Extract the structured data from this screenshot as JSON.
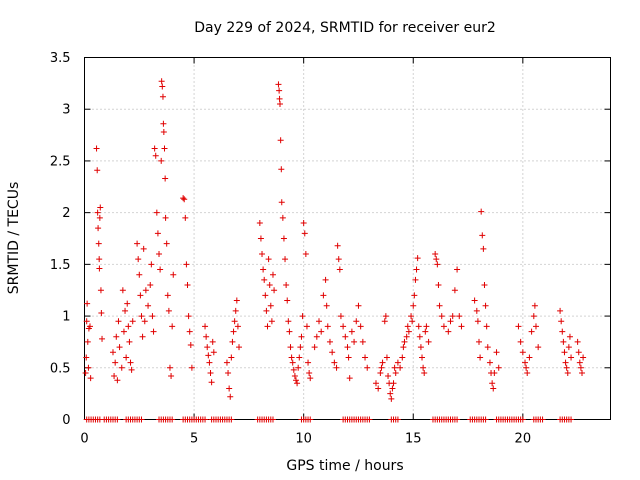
{
  "chart_data": {
    "type": "scatter",
    "title": "Day 229 of 2024, SRMTID for receiver eur2",
    "xlabel": "GPS time / hours",
    "ylabel": "SRMTID / TECUs",
    "xlim": [
      0,
      24
    ],
    "ylim": [
      0,
      3.5
    ],
    "x_ticks": [
      0,
      5,
      10,
      15,
      20
    ],
    "x_tick_labels": [
      "0",
      "5",
      "10",
      "15",
      "20"
    ],
    "y_ticks": [
      0,
      0.5,
      1,
      1.5,
      2,
      2.5,
      3,
      3.5
    ],
    "y_tick_labels": [
      "0",
      "0.5",
      "1",
      "1.5",
      "2",
      "2.5",
      "3",
      "3.5"
    ],
    "grid": true,
    "marker": "+",
    "marker_color": "#e00000",
    "series": [
      {
        "name": "SRMTID",
        "points": [
          [
            0.05,
            0.45
          ],
          [
            0.08,
            0.6
          ],
          [
            0.1,
            0.95
          ],
          [
            0.12,
            1.12
          ],
          [
            0.15,
            0.75
          ],
          [
            0.18,
            0.5
          ],
          [
            0.2,
            0.88
          ],
          [
            0.25,
            0.9
          ],
          [
            0.28,
            0.4
          ],
          [
            0.55,
            2.62
          ],
          [
            0.58,
            2.41
          ],
          [
            0.6,
            2.0
          ],
          [
            0.62,
            1.85
          ],
          [
            0.65,
            1.7
          ],
          [
            0.67,
            1.55
          ],
          [
            0.68,
            1.46
          ],
          [
            0.7,
            1.95
          ],
          [
            0.72,
            2.05
          ],
          [
            0.75,
            1.25
          ],
          [
            0.77,
            1.03
          ],
          [
            0.8,
            0.78
          ],
          [
            1.3,
            0.65
          ],
          [
            1.35,
            0.42
          ],
          [
            1.4,
            0.55
          ],
          [
            1.45,
            0.8
          ],
          [
            1.5,
            0.38
          ],
          [
            1.55,
            0.95
          ],
          [
            1.6,
            0.7
          ],
          [
            1.7,
            0.5
          ],
          [
            1.75,
            1.25
          ],
          [
            1.8,
            0.85
          ],
          [
            1.85,
            1.05
          ],
          [
            1.9,
            0.6
          ],
          [
            1.95,
            1.12
          ],
          [
            2.0,
            0.9
          ],
          [
            2.05,
            0.75
          ],
          [
            2.1,
            0.55
          ],
          [
            2.15,
            0.48
          ],
          [
            2.2,
            0.95
          ],
          [
            2.4,
            1.7
          ],
          [
            2.45,
            1.55
          ],
          [
            2.5,
            1.4
          ],
          [
            2.55,
            1.2
          ],
          [
            2.6,
            1.0
          ],
          [
            2.65,
            0.8
          ],
          [
            2.7,
            1.65
          ],
          [
            2.75,
            0.95
          ],
          [
            2.8,
            1.25
          ],
          [
            2.9,
            1.1
          ],
          [
            3.0,
            1.3
          ],
          [
            3.05,
            1.5
          ],
          [
            3.1,
            1.0
          ],
          [
            3.15,
            0.85
          ],
          [
            3.2,
            2.62
          ],
          [
            3.25,
            2.55
          ],
          [
            3.3,
            2.0
          ],
          [
            3.35,
            1.8
          ],
          [
            3.4,
            1.6
          ],
          [
            3.45,
            1.45
          ],
          [
            3.5,
            2.5
          ],
          [
            3.52,
            3.27
          ],
          [
            3.55,
            3.22
          ],
          [
            3.58,
            3.12
          ],
          [
            3.6,
            2.86
          ],
          [
            3.62,
            2.78
          ],
          [
            3.65,
            2.62
          ],
          [
            3.68,
            2.33
          ],
          [
            3.7,
            1.95
          ],
          [
            3.75,
            1.7
          ],
          [
            3.8,
            1.2
          ],
          [
            3.85,
            1.05
          ],
          [
            3.9,
            0.5
          ],
          [
            3.95,
            0.42
          ],
          [
            4.0,
            0.9
          ],
          [
            4.05,
            1.4
          ],
          [
            4.5,
            2.14
          ],
          [
            4.55,
            2.13
          ],
          [
            4.6,
            1.95
          ],
          [
            4.65,
            1.5
          ],
          [
            4.7,
            1.3
          ],
          [
            4.75,
            1.0
          ],
          [
            4.8,
            0.85
          ],
          [
            4.85,
            0.72
          ],
          [
            4.9,
            0.5
          ],
          [
            5.5,
            0.9
          ],
          [
            5.55,
            0.8
          ],
          [
            5.6,
            0.7
          ],
          [
            5.65,
            0.62
          ],
          [
            5.7,
            0.55
          ],
          [
            5.75,
            0.45
          ],
          [
            5.8,
            0.36
          ],
          [
            5.85,
            0.75
          ],
          [
            5.9,
            0.65
          ],
          [
            6.5,
            0.55
          ],
          [
            6.55,
            0.45
          ],
          [
            6.6,
            0.3
          ],
          [
            6.65,
            0.22
          ],
          [
            6.7,
            0.6
          ],
          [
            6.75,
            0.75
          ],
          [
            6.8,
            0.85
          ],
          [
            6.85,
            0.95
          ],
          [
            6.9,
            1.05
          ],
          [
            6.95,
            1.15
          ],
          [
            7.0,
            0.9
          ],
          [
            7.05,
            0.7
          ],
          [
            8.0,
            1.9
          ],
          [
            8.05,
            1.75
          ],
          [
            8.1,
            1.6
          ],
          [
            8.15,
            1.45
          ],
          [
            8.2,
            1.35
          ],
          [
            8.25,
            1.2
          ],
          [
            8.3,
            1.05
          ],
          [
            8.35,
            0.9
          ],
          [
            8.4,
            1.55
          ],
          [
            8.45,
            1.3
          ],
          [
            8.5,
            1.1
          ],
          [
            8.55,
            0.95
          ],
          [
            8.6,
            1.4
          ],
          [
            8.65,
            1.25
          ],
          [
            8.85,
            3.24
          ],
          [
            8.88,
            3.18
          ],
          [
            8.9,
            3.1
          ],
          [
            8.92,
            3.05
          ],
          [
            8.95,
            2.7
          ],
          [
            8.98,
            2.42
          ],
          [
            9.0,
            2.1
          ],
          [
            9.05,
            1.95
          ],
          [
            9.1,
            1.75
          ],
          [
            9.15,
            1.55
          ],
          [
            9.2,
            1.3
          ],
          [
            9.25,
            1.15
          ],
          [
            9.3,
            0.95
          ],
          [
            9.35,
            0.85
          ],
          [
            9.4,
            0.7
          ],
          [
            9.45,
            0.6
          ],
          [
            9.5,
            0.55
          ],
          [
            9.55,
            0.48
          ],
          [
            9.6,
            0.42
          ],
          [
            9.65,
            0.38
          ],
          [
            9.7,
            0.35
          ],
          [
            9.75,
            0.5
          ],
          [
            9.8,
            0.6
          ],
          [
            9.85,
            0.7
          ],
          [
            9.9,
            0.8
          ],
          [
            9.95,
            1.0
          ],
          [
            10.0,
            1.9
          ],
          [
            10.05,
            1.8
          ],
          [
            10.1,
            1.6
          ],
          [
            10.15,
            0.9
          ],
          [
            10.2,
            0.55
          ],
          [
            10.25,
            0.45
          ],
          [
            10.3,
            0.4
          ],
          [
            10.5,
            0.7
          ],
          [
            10.6,
            0.8
          ],
          [
            10.7,
            0.95
          ],
          [
            10.8,
            0.85
          ],
          [
            10.9,
            1.2
          ],
          [
            11.0,
            1.35
          ],
          [
            11.05,
            1.1
          ],
          [
            11.1,
            0.9
          ],
          [
            11.2,
            0.75
          ],
          [
            11.3,
            0.65
          ],
          [
            11.4,
            0.55
          ],
          [
            11.5,
            0.5
          ],
          [
            11.55,
            1.68
          ],
          [
            11.6,
            1.55
          ],
          [
            11.65,
            1.45
          ],
          [
            11.7,
            1.0
          ],
          [
            11.8,
            0.9
          ],
          [
            11.9,
            0.8
          ],
          [
            12.0,
            0.7
          ],
          [
            12.05,
            0.6
          ],
          [
            12.1,
            0.4
          ],
          [
            12.2,
            0.85
          ],
          [
            12.3,
            0.75
          ],
          [
            12.4,
            0.95
          ],
          [
            12.5,
            1.1
          ],
          [
            12.6,
            0.9
          ],
          [
            12.7,
            0.75
          ],
          [
            12.8,
            0.6
          ],
          [
            12.9,
            0.5
          ],
          [
            13.3,
            0.35
          ],
          [
            13.4,
            0.3
          ],
          [
            13.5,
            0.45
          ],
          [
            13.55,
            0.5
          ],
          [
            13.6,
            0.55
          ],
          [
            13.7,
            0.95
          ],
          [
            13.75,
            1.0
          ],
          [
            13.8,
            0.6
          ],
          [
            13.85,
            0.42
          ],
          [
            13.9,
            0.35
          ],
          [
            13.95,
            0.25
          ],
          [
            14.0,
            0.2
          ],
          [
            14.05,
            0.3
          ],
          [
            14.1,
            0.35
          ],
          [
            14.15,
            0.5
          ],
          [
            14.2,
            0.45
          ],
          [
            14.3,
            0.55
          ],
          [
            14.4,
            0.5
          ],
          [
            14.5,
            0.6
          ],
          [
            14.55,
            0.7
          ],
          [
            14.6,
            0.75
          ],
          [
            14.7,
            0.8
          ],
          [
            14.75,
            0.9
          ],
          [
            14.8,
            0.85
          ],
          [
            14.9,
            1.0
          ],
          [
            14.95,
            0.95
          ],
          [
            15.0,
            1.1
          ],
          [
            15.05,
            1.2
          ],
          [
            15.1,
            1.35
          ],
          [
            15.15,
            1.45
          ],
          [
            15.2,
            1.56
          ],
          [
            15.25,
            0.9
          ],
          [
            15.3,
            0.8
          ],
          [
            15.35,
            0.7
          ],
          [
            15.4,
            0.6
          ],
          [
            15.45,
            0.5
          ],
          [
            15.5,
            0.45
          ],
          [
            15.55,
            0.85
          ],
          [
            15.6,
            0.9
          ],
          [
            15.7,
            0.75
          ],
          [
            16.0,
            1.6
          ],
          [
            16.05,
            1.55
          ],
          [
            16.1,
            1.5
          ],
          [
            16.15,
            1.3
          ],
          [
            16.2,
            1.1
          ],
          [
            16.3,
            1.0
          ],
          [
            16.4,
            0.9
          ],
          [
            16.6,
            0.85
          ],
          [
            16.7,
            0.95
          ],
          [
            16.8,
            1.0
          ],
          [
            16.9,
            1.25
          ],
          [
            17.0,
            1.45
          ],
          [
            17.1,
            1.0
          ],
          [
            17.2,
            0.9
          ],
          [
            17.8,
            1.15
          ],
          [
            17.9,
            1.05
          ],
          [
            17.95,
            0.95
          ],
          [
            18.0,
            0.75
          ],
          [
            18.05,
            0.6
          ],
          [
            18.1,
            2.01
          ],
          [
            18.15,
            1.78
          ],
          [
            18.2,
            1.65
          ],
          [
            18.25,
            1.3
          ],
          [
            18.3,
            1.1
          ],
          [
            18.35,
            0.9
          ],
          [
            18.4,
            0.7
          ],
          [
            18.5,
            0.55
          ],
          [
            18.55,
            0.45
          ],
          [
            18.6,
            0.35
          ],
          [
            18.65,
            0.3
          ],
          [
            18.7,
            0.45
          ],
          [
            18.8,
            0.65
          ],
          [
            18.9,
            0.5
          ],
          [
            19.8,
            0.9
          ],
          [
            19.9,
            0.75
          ],
          [
            20.0,
            0.65
          ],
          [
            20.1,
            0.55
          ],
          [
            20.15,
            0.5
          ],
          [
            20.2,
            0.45
          ],
          [
            20.3,
            0.6
          ],
          [
            20.4,
            0.85
          ],
          [
            20.5,
            1.0
          ],
          [
            20.55,
            1.1
          ],
          [
            20.6,
            0.9
          ],
          [
            20.7,
            0.7
          ],
          [
            21.7,
            1.05
          ],
          [
            21.75,
            0.95
          ],
          [
            21.8,
            0.85
          ],
          [
            21.85,
            0.75
          ],
          [
            21.9,
            0.65
          ],
          [
            21.95,
            0.55
          ],
          [
            22.0,
            0.5
          ],
          [
            22.05,
            0.45
          ],
          [
            22.1,
            0.7
          ],
          [
            22.15,
            0.8
          ],
          [
            22.2,
            0.6
          ],
          [
            22.5,
            0.75
          ],
          [
            22.55,
            0.65
          ],
          [
            22.6,
            0.55
          ],
          [
            22.65,
            0.5
          ],
          [
            22.7,
            0.45
          ],
          [
            22.75,
            0.6
          ]
        ]
      }
    ],
    "zero_band": {
      "y": 0,
      "x_ranges": [
        [
          0.1,
          0.7
        ],
        [
          0.9,
          1.5
        ],
        [
          1.9,
          2.6
        ],
        [
          3.4,
          4.0
        ],
        [
          4.5,
          5.5
        ],
        [
          5.8,
          6.7
        ],
        [
          7.9,
          8.6
        ],
        [
          9.9,
          10.3
        ],
        [
          11.8,
          13.0
        ],
        [
          14.0,
          14.3
        ],
        [
          15.9,
          17.0
        ],
        [
          17.6,
          18.3
        ],
        [
          18.8,
          20.0
        ],
        [
          20.5,
          20.9
        ],
        [
          21.7,
          22.2
        ]
      ]
    }
  }
}
